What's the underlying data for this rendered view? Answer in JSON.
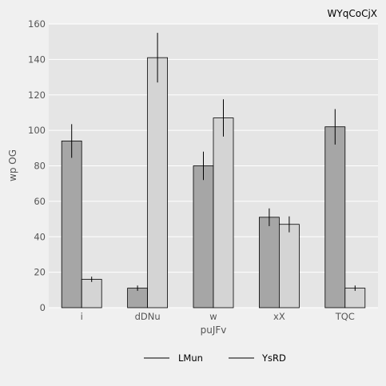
{
  "chart_data": {
    "type": "bar",
    "title": "WYqCoCjX",
    "xlabel": "puJFv",
    "ylabel": "wp OG",
    "ylim": [
      0,
      160
    ],
    "yticks": [
      0,
      20,
      40,
      60,
      80,
      100,
      120,
      140,
      160
    ],
    "grid": true,
    "legend_position": "bottom",
    "categories": [
      "i",
      "dDNu",
      "w",
      "xX",
      "TQC"
    ],
    "series": [
      {
        "name": "LMun",
        "color": "#a6a6a6",
        "values": [
          94,
          11,
          80,
          51,
          102
        ],
        "errors": [
          9.5,
          1.5,
          8,
          5,
          10
        ]
      },
      {
        "name": "YsRD",
        "color": "#d4d4d4",
        "values": [
          16,
          141,
          107,
          47,
          11
        ],
        "errors": [
          1.5,
          14,
          10.5,
          4.5,
          1.5
        ]
      }
    ],
    "colors": {
      "background": "#f0f0f0",
      "plot_background": "#e5e5e5",
      "grid": "#ffffff",
      "bar_edge": "#000000",
      "text": "#555555"
    }
  }
}
